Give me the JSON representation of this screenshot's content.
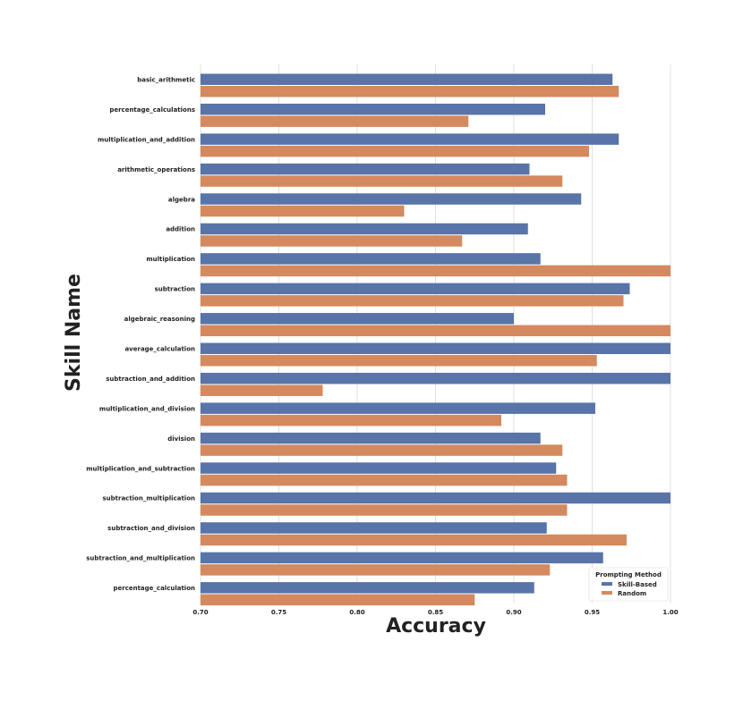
{
  "chart_data": {
    "type": "bar",
    "orientation": "horizontal",
    "xlabel": "Accuracy",
    "ylabel": "Skill Name",
    "xlim": [
      0.7,
      1.0
    ],
    "xticks": [
      "0.70",
      "0.75",
      "0.80",
      "0.85",
      "0.90",
      "0.95",
      "1.00"
    ],
    "grid": "vertical",
    "categories": [
      "basic_arithmetic",
      "percentage_calculations",
      "multiplication_and_addition",
      "arithmetic_operations",
      "algebra",
      "addition",
      "multiplication",
      "subtraction",
      "algebraic_reasoning",
      "average_calculation",
      "subtraction_and_addition",
      "multiplication_and_division",
      "division",
      "multiplication_and_subtraction",
      "subtraction_multiplication",
      "subtraction_and_division",
      "subtraction_and_multiplication",
      "percentage_calculation"
    ],
    "series": [
      {
        "name": "Skill-Based",
        "color": "#5874a8",
        "values": [
          0.963,
          0.92,
          0.967,
          0.91,
          0.943,
          0.909,
          0.917,
          0.974,
          0.9,
          1.0,
          1.0,
          0.952,
          0.917,
          0.927,
          1.0,
          0.921,
          0.957,
          0.913
        ]
      },
      {
        "name": "Random",
        "color": "#d4895f",
        "values": [
          0.967,
          0.871,
          0.948,
          0.931,
          0.83,
          0.867,
          1.0,
          0.97,
          1.0,
          0.953,
          0.778,
          0.892,
          0.931,
          0.934,
          0.934,
          0.972,
          0.923,
          0.875
        ]
      }
    ],
    "legend": {
      "title": "Prompting Method",
      "placement": "bottom-right"
    }
  }
}
